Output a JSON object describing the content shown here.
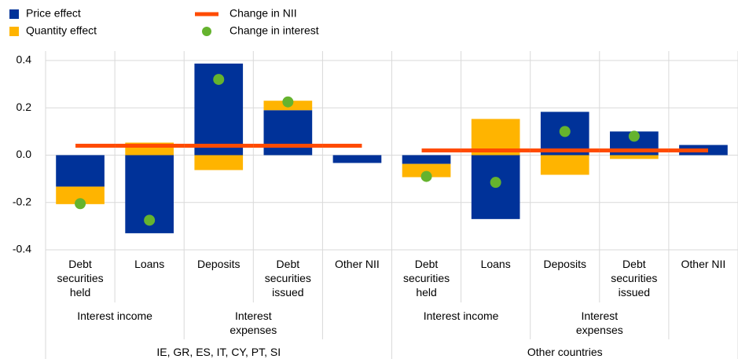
{
  "chart_data": {
    "type": "bar",
    "stacked": true,
    "groups": [
      {
        "name": "IE, GR, ES, IT, CY, PT, SI",
        "subgroups": [
          {
            "name": "Interest income",
            "categories": [
              "Debt securities held",
              "Loans"
            ]
          },
          {
            "name": "Interest expenses",
            "categories": [
              "Deposits",
              "Debt securities issued"
            ]
          },
          {
            "name": null,
            "categories": [
              "Other NII"
            ]
          }
        ]
      },
      {
        "name": "Other countries",
        "subgroups": [
          {
            "name": "Interest income",
            "categories": [
              "Debt securities held",
              "Loans"
            ]
          },
          {
            "name": "Interest expenses",
            "categories": [
              "Deposits",
              "Debt securities issued"
            ]
          },
          {
            "name": null,
            "categories": [
              "Other NII"
            ]
          }
        ]
      }
    ],
    "series": [
      {
        "name": "Price effect",
        "type": "bar",
        "color": "#003299",
        "values": [
          -0.133,
          -0.33,
          0.387,
          0.19,
          -0.033,
          -0.037,
          -0.27,
          0.183,
          0.1,
          0.043
        ]
      },
      {
        "name": "Quantity effect",
        "type": "bar",
        "color": "#ffb400",
        "values": [
          -0.074,
          0.053,
          -0.063,
          0.04,
          0,
          -0.056,
          0.153,
          -0.083,
          -0.016,
          0
        ]
      },
      {
        "name": "Change in NII",
        "type": "line",
        "color": "#ff4b00",
        "values": [
          0.04,
          0.04,
          0.04,
          0.04,
          0.04,
          0.02,
          0.02,
          0.02,
          0.02,
          0.02
        ]
      },
      {
        "name": "Change in interest",
        "type": "scatter",
        "color": "#65b32e",
        "values": [
          -0.205,
          -0.275,
          0.32,
          0.225,
          null,
          -0.09,
          -0.115,
          0.1,
          0.08,
          null
        ]
      }
    ],
    "ylim": [
      -0.4,
      0.4
    ],
    "yticks": [
      -0.4,
      -0.2,
      {
        "value": 0,
        "label": "0.0"
      },
      0.2,
      0.4
    ],
    "grid": true
  }
}
